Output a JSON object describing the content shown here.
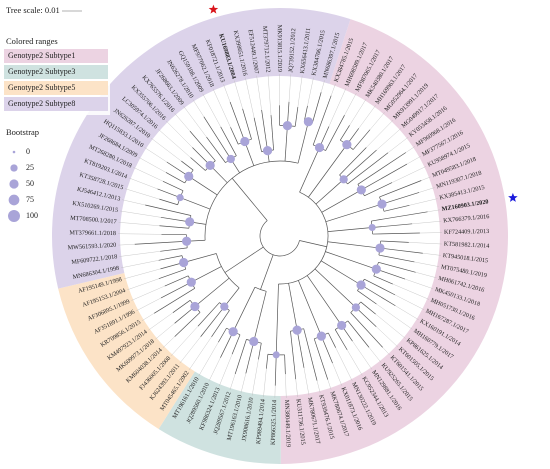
{
  "tree_scale": "Tree scale: 0.01",
  "colored_ranges": {
    "title": "Colored ranges",
    "items": [
      {
        "name": "Genotype2 Subtype1",
        "color": "#ecd3e2"
      },
      {
        "name": "Genotype2 Subtype3",
        "color": "#cfe2e0"
      },
      {
        "name": "Genotype2 Subtype5",
        "color": "#fce3c7"
      },
      {
        "name": "Genotype2 Subtype8",
        "color": "#dcd3ea"
      }
    ]
  },
  "bootstrap_legend": {
    "title": "Bootstrap",
    "values": [
      0,
      25,
      50,
      75,
      100
    ],
    "color": "#a9a4d8"
  },
  "leaves": [
    {
      "label": "KX384785.1/2015",
      "range": 0
    },
    {
      "label": "MH698589.1/2017",
      "range": 0
    },
    {
      "label": "MF987065.1/2017",
      "range": 0
    },
    {
      "label": "MK540380.1/2017",
      "range": 0
    },
    {
      "label": "MH169963.1/2017",
      "range": 0
    },
    {
      "label": "MG052964.1/2017",
      "range": 0
    },
    {
      "label": "MK913991.1/2019",
      "range": 0
    },
    {
      "label": "MG049917.1/2017",
      "range": 0
    },
    {
      "label": "KY053458.1/2016",
      "range": 0
    },
    {
      "label": "MF960968.1/2016",
      "range": 0
    },
    {
      "label": "MF377567.1/2016",
      "range": 0
    },
    {
      "label": "KU958974.1/2015",
      "range": 0
    },
    {
      "label": "MT049583.1/2018",
      "range": 0
    },
    {
      "label": "MN119307.1/2018",
      "range": 0
    },
    {
      "label": "KX385413.1/2015",
      "range": 0
    },
    {
      "label": "MZ160903.1/2020",
      "range": 0,
      "color": "#1a1adc"
    },
    {
      "label": "KX766379.1/2016",
      "range": 0
    },
    {
      "label": "KF724409.1/2013",
      "range": 0
    },
    {
      "label": "KT581982.1/2014",
      "range": 0
    },
    {
      "label": "KT945018.1/2015",
      "range": 0
    },
    {
      "label": "MT075480.1/2019",
      "range": 0
    },
    {
      "label": "MH061742.1/2016",
      "range": 0
    },
    {
      "label": "MK450133.1/2018",
      "range": 0
    },
    {
      "label": "MH051730.1/2016",
      "range": 0
    },
    {
      "label": "MH167287.1/2017",
      "range": 0
    },
    {
      "label": "KX160191.1/2014",
      "range": 0
    },
    {
      "label": "MH160779.1/2017",
      "range": 0
    },
    {
      "label": "KP861625.1/2014",
      "range": 0
    },
    {
      "label": "KT601505.1/2015",
      "range": 0
    },
    {
      "label": "KT601541.1/2015",
      "range": 0
    },
    {
      "label": "KU925265.1/2015",
      "range": 0
    },
    {
      "label": "MN129881.1/2016",
      "range": 0
    },
    {
      "label": "KC952344.1/2013",
      "range": 0
    },
    {
      "label": "MN130222.1/2019",
      "range": 0
    },
    {
      "label": "KX011873.1/2016",
      "range": 0
    },
    {
      "label": "MK780674.1/2017",
      "range": 0
    },
    {
      "label": "KT939476.1/2015",
      "range": 0
    },
    {
      "label": "MK780671.1/2017",
      "range": 0
    },
    {
      "label": "KU311736.1/2015",
      "range": 0
    },
    {
      "label": "MN380449.1/2019",
      "range": 0
    },
    {
      "label": "KP866325.1/2014",
      "range": 1
    },
    {
      "label": "KP989494.1/2014",
      "range": 1
    },
    {
      "label": "JX908616.1/2010",
      "range": 1
    },
    {
      "label": "MT196163.1/2010",
      "range": 1
    },
    {
      "label": "JQ289567.1/2012",
      "range": 1
    },
    {
      "label": "KF986324.1/2013",
      "range": 1
    },
    {
      "label": "JQ289560.1/2010",
      "range": 1
    },
    {
      "label": "MT196161.1/2010",
      "range": 1
    },
    {
      "label": "MT045465.1/2002",
      "range": 2
    },
    {
      "label": "KJ624393.1/2011",
      "range": 2
    },
    {
      "label": "FJ436005.1/2008",
      "range": 2
    },
    {
      "label": "KM604038.1/2014",
      "range": 2
    },
    {
      "label": "MK609973.1/2018",
      "range": 2
    },
    {
      "label": "KM497923.1/2014",
      "range": 2
    },
    {
      "label": "KR709856.1/2015",
      "range": 2
    },
    {
      "label": "AF351891.1/1996",
      "range": 2
    },
    {
      "label": "AF306895.1/1999",
      "range": 2
    },
    {
      "label": "AF195153.1/2004",
      "range": 2
    },
    {
      "label": "AF195149.1/1998",
      "range": 2
    },
    {
      "label": "MN686304.1/1998",
      "range": 3
    },
    {
      "label": "MF609722.1/2018",
      "range": 3
    },
    {
      "label": "MW561593.1/2020",
      "range": 3
    },
    {
      "label": "MT379661.1/2018",
      "range": 3
    },
    {
      "label": "MT708500.1/2017",
      "range": 3
    },
    {
      "label": "KX510269.1/2015",
      "range": 3
    },
    {
      "label": "KJ546412.1/2013",
      "range": 3
    },
    {
      "label": "KT358728.1/2015",
      "range": 3
    },
    {
      "label": "KT819203.1/2014",
      "range": 3
    },
    {
      "label": "MT268280.1/2018",
      "range": 3
    },
    {
      "label": "JF268684.1/2009",
      "range": 3
    },
    {
      "label": "HQ115833.1/2010",
      "range": 3
    },
    {
      "label": "JN626287.1/2010",
      "range": 3
    },
    {
      "label": "LC305974.1/2016",
      "range": 3
    },
    {
      "label": "KX355706.1/2016",
      "range": 3
    },
    {
      "label": "KX765576.1/2016",
      "range": 3
    },
    {
      "label": "JF268663.1/2009",
      "range": 3
    },
    {
      "label": "JN626278.1/2010",
      "range": 3
    },
    {
      "label": "GQ159108.1/2009",
      "range": 3
    },
    {
      "label": "MF977062.1/2018",
      "range": 3
    },
    {
      "label": "KF018721.1/2013",
      "range": 3
    },
    {
      "label": "KU169883.1/2004",
      "range": 3,
      "color": "#d9141b"
    },
    {
      "label": "KX398651.1/2016",
      "range": 3
    },
    {
      "label": "EF512449.1/2007",
      "range": 3
    },
    {
      "label": "MT379712.1/2012",
      "range": 3
    },
    {
      "label": "MK913815.1/2019",
      "range": 3
    },
    {
      "label": "JQ739152.1/2012",
      "range": 3
    },
    {
      "label": "KX656413.1/2011",
      "range": 3
    },
    {
      "label": "KX384706.1/2015",
      "range": 3
    },
    {
      "label": "MN686397.1/2015",
      "range": 3
    }
  ],
  "bootstrap": [
    100,
    100,
    75,
    100,
    100,
    50,
    100,
    100,
    100,
    75,
    100,
    100,
    100,
    50,
    100,
    100,
    75,
    100,
    100,
    100,
    100,
    100,
    50,
    100,
    100,
    75,
    100,
    100,
    100,
    100
  ]
}
